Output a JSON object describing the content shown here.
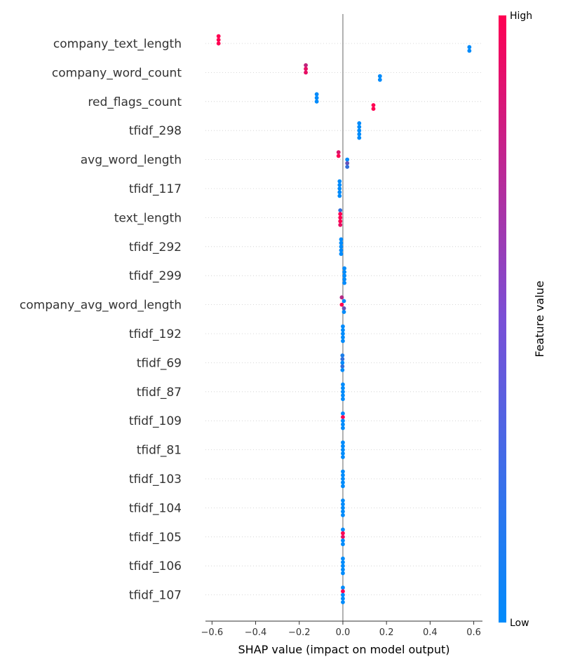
{
  "chart_data": {
    "type": "scatter",
    "xlabel": "SHAP value (impact on model output)",
    "xlim": [
      -0.63,
      0.64
    ],
    "xticks": [
      "−0.6",
      "−0.4",
      "−0.2",
      "0.0",
      "0.2",
      "0.4",
      "0.6"
    ],
    "xtick_values": [
      -0.6,
      -0.4,
      -0.2,
      0.0,
      0.2,
      0.4,
      0.6
    ],
    "colorbar": {
      "label": "Feature value",
      "high": "High",
      "low": "Low",
      "color_low": "#008bfb",
      "color_high": "#ff0052"
    },
    "features": [
      {
        "name": "company_text_length",
        "points": [
          {
            "x": -0.57,
            "v": 1.0
          },
          {
            "x": -0.57,
            "v": 1.0
          },
          {
            "x": -0.57,
            "v": 1.0
          },
          {
            "x": 0.58,
            "v": 0.0
          },
          {
            "x": 0.58,
            "v": 0.0
          }
        ]
      },
      {
        "name": "company_word_count",
        "points": [
          {
            "x": -0.17,
            "v": 0.75
          },
          {
            "x": -0.17,
            "v": 0.9
          },
          {
            "x": -0.17,
            "v": 0.9
          },
          {
            "x": 0.17,
            "v": 0.0
          },
          {
            "x": 0.17,
            "v": 0.0
          }
        ]
      },
      {
        "name": "red_flags_count",
        "points": [
          {
            "x": -0.12,
            "v": 0.0
          },
          {
            "x": -0.12,
            "v": 0.0
          },
          {
            "x": -0.12,
            "v": 0.0
          },
          {
            "x": 0.14,
            "v": 1.0
          },
          {
            "x": 0.14,
            "v": 1.0
          }
        ]
      },
      {
        "name": "tfidf_298",
        "points": [
          {
            "x": 0.075,
            "v": 0.0
          },
          {
            "x": 0.075,
            "v": 0.0
          },
          {
            "x": 0.075,
            "v": 0.0
          },
          {
            "x": 0.075,
            "v": 0.0
          },
          {
            "x": 0.075,
            "v": 0.0
          }
        ]
      },
      {
        "name": "avg_word_length",
        "points": [
          {
            "x": -0.02,
            "v": 0.85
          },
          {
            "x": -0.02,
            "v": 1.0
          },
          {
            "x": 0.02,
            "v": 0.0
          },
          {
            "x": 0.02,
            "v": 0.4
          },
          {
            "x": 0.02,
            "v": 0.2
          }
        ]
      },
      {
        "name": "tfidf_117",
        "points": [
          {
            "x": -0.015,
            "v": 0.0
          },
          {
            "x": -0.015,
            "v": 0.0
          },
          {
            "x": -0.015,
            "v": 0.0
          },
          {
            "x": -0.015,
            "v": 0.0
          },
          {
            "x": -0.015,
            "v": 0.0
          }
        ]
      },
      {
        "name": "text_length",
        "points": [
          {
            "x": -0.012,
            "v": 0.2
          },
          {
            "x": -0.012,
            "v": 1.0
          },
          {
            "x": -0.012,
            "v": 1.0
          },
          {
            "x": -0.012,
            "v": 1.0
          },
          {
            "x": -0.012,
            "v": 0.9
          }
        ]
      },
      {
        "name": "tfidf_292",
        "points": [
          {
            "x": -0.008,
            "v": 0.0
          },
          {
            "x": -0.008,
            "v": 0.0
          },
          {
            "x": -0.008,
            "v": 0.0
          },
          {
            "x": -0.008,
            "v": 0.0
          },
          {
            "x": -0.008,
            "v": 0.0
          }
        ]
      },
      {
        "name": "tfidf_299",
        "points": [
          {
            "x": 0.007,
            "v": 0.0
          },
          {
            "x": 0.007,
            "v": 0.0
          },
          {
            "x": 0.007,
            "v": 0.0
          },
          {
            "x": 0.007,
            "v": 0.0
          },
          {
            "x": 0.007,
            "v": 0.0
          }
        ]
      },
      {
        "name": "company_avg_word_length",
        "points": [
          {
            "x": -0.005,
            "v": 0.7
          },
          {
            "x": 0.005,
            "v": 0.0
          },
          {
            "x": -0.005,
            "v": 1.0
          },
          {
            "x": 0.005,
            "v": 0.4
          },
          {
            "x": 0.005,
            "v": 0.0
          }
        ]
      },
      {
        "name": "tfidf_192",
        "points": [
          {
            "x": 0.0,
            "v": 0.0
          },
          {
            "x": 0.0,
            "v": 0.0
          },
          {
            "x": 0.0,
            "v": 0.0
          },
          {
            "x": 0.0,
            "v": 0.0
          },
          {
            "x": 0.0,
            "v": 0.0
          }
        ]
      },
      {
        "name": "tfidf_69",
        "points": [
          {
            "x": -0.002,
            "v": 0.1
          },
          {
            "x": -0.002,
            "v": 0.2
          },
          {
            "x": -0.002,
            "v": 0.0
          },
          {
            "x": -0.002,
            "v": 0.2
          },
          {
            "x": -0.002,
            "v": 0.0
          }
        ]
      },
      {
        "name": "tfidf_87",
        "points": [
          {
            "x": 0.0,
            "v": 0.0
          },
          {
            "x": 0.0,
            "v": 0.0
          },
          {
            "x": 0.0,
            "v": 0.0
          },
          {
            "x": 0.0,
            "v": 0.0
          },
          {
            "x": 0.0,
            "v": 0.0
          }
        ]
      },
      {
        "name": "tfidf_109",
        "points": [
          {
            "x": 0.0,
            "v": 0.0
          },
          {
            "x": 0.0,
            "v": 1.0
          },
          {
            "x": 0.0,
            "v": 0.0
          },
          {
            "x": 0.0,
            "v": 0.0
          },
          {
            "x": 0.0,
            "v": 0.0
          }
        ]
      },
      {
        "name": "tfidf_81",
        "points": [
          {
            "x": 0.0,
            "v": 0.0
          },
          {
            "x": 0.0,
            "v": 0.0
          },
          {
            "x": 0.0,
            "v": 0.0
          },
          {
            "x": 0.0,
            "v": 0.0
          },
          {
            "x": 0.0,
            "v": 0.0
          }
        ]
      },
      {
        "name": "tfidf_103",
        "points": [
          {
            "x": 0.0,
            "v": 0.0
          },
          {
            "x": 0.0,
            "v": 0.0
          },
          {
            "x": 0.0,
            "v": 0.0
          },
          {
            "x": 0.0,
            "v": 0.0
          },
          {
            "x": 0.0,
            "v": 0.0
          }
        ]
      },
      {
        "name": "tfidf_104",
        "points": [
          {
            "x": 0.0,
            "v": 0.0
          },
          {
            "x": 0.0,
            "v": 0.0
          },
          {
            "x": 0.0,
            "v": 0.0
          },
          {
            "x": 0.0,
            "v": 0.0
          },
          {
            "x": 0.0,
            "v": 0.0
          }
        ]
      },
      {
        "name": "tfidf_105",
        "points": [
          {
            "x": 0.0,
            "v": 0.0
          },
          {
            "x": 0.0,
            "v": 1.0
          },
          {
            "x": 0.0,
            "v": 0.9
          },
          {
            "x": 0.0,
            "v": 0.0
          },
          {
            "x": 0.0,
            "v": 0.0
          }
        ]
      },
      {
        "name": "tfidf_106",
        "points": [
          {
            "x": 0.0,
            "v": 0.0
          },
          {
            "x": 0.0,
            "v": 0.0
          },
          {
            "x": 0.0,
            "v": 0.0
          },
          {
            "x": 0.0,
            "v": 0.0
          },
          {
            "x": 0.0,
            "v": 0.0
          }
        ]
      },
      {
        "name": "tfidf_107",
        "points": [
          {
            "x": 0.0,
            "v": 0.0
          },
          {
            "x": 0.0,
            "v": 1.0
          },
          {
            "x": 0.0,
            "v": 0.0
          },
          {
            "x": 0.0,
            "v": 0.0
          },
          {
            "x": 0.0,
            "v": 0.0
          }
        ]
      }
    ]
  }
}
